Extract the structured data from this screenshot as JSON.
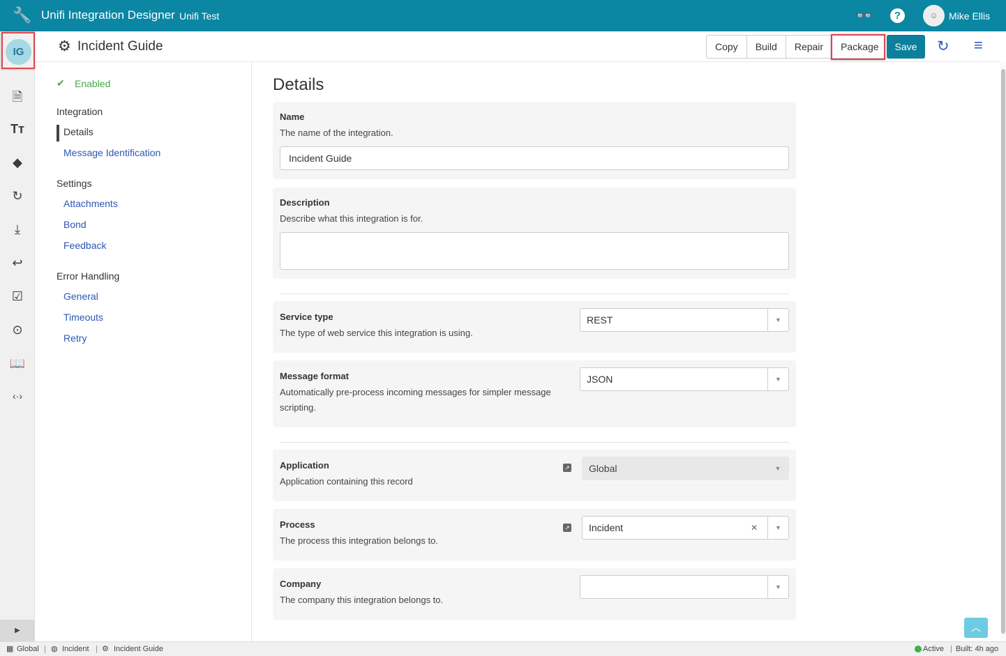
{
  "header": {
    "app_title": "Unifi Integration Designer",
    "subtitle": "Unifi Test",
    "user_name": "Mike Ellis",
    "icons": [
      "wrench-icon",
      "glasses-icon",
      "help-icon",
      "user-avatar"
    ],
    "color": "#0b86a3"
  },
  "rail": {
    "badge": "IG",
    "icons": [
      "document-icon",
      "text-size-icon",
      "direction-icon",
      "history-icon",
      "download-icon",
      "reply-icon",
      "clipboard-check-icon",
      "play-icon",
      "book-icon",
      "code-icon"
    ]
  },
  "toolbar": {
    "title": "Incident Guide",
    "buttons": [
      "Copy",
      "Build",
      "Repair",
      "Package"
    ],
    "save": "Save"
  },
  "nav": {
    "status": "Enabled",
    "sections": [
      {
        "title": "Integration",
        "items": [
          "Details",
          "Message Identification"
        ],
        "active": "Details"
      },
      {
        "title": "Settings",
        "items": [
          "Attachments",
          "Bond",
          "Feedback"
        ]
      },
      {
        "title": "Error Handling",
        "items": [
          "General",
          "Timeouts",
          "Retry"
        ]
      }
    ]
  },
  "main": {
    "heading": "Details",
    "name": {
      "label": "Name",
      "help": "The name of the integration.",
      "value": "Incident Guide"
    },
    "description": {
      "label": "Description",
      "help": "Describe what this integration is for.",
      "value": ""
    },
    "service_type": {
      "label": "Service type",
      "help": "The type of web service this integration is using.",
      "value": "REST"
    },
    "message_format": {
      "label": "Message format",
      "help": "Automatically pre-process incoming messages for simpler message scripting.",
      "value": "JSON"
    },
    "application": {
      "label": "Application",
      "help": "Application containing this record",
      "value": "Global"
    },
    "process": {
      "label": "Process",
      "help": "The process this integration belongs to.",
      "value": "Incident"
    },
    "company": {
      "label": "Company",
      "help": "The company this integration belongs to.",
      "value": ""
    }
  },
  "status_bar": {
    "scope": "Global",
    "process": "Incident",
    "record": "Incident Guide",
    "state": "Active",
    "built": "Built: 4h ago",
    "state_color": "#3fb04a"
  }
}
